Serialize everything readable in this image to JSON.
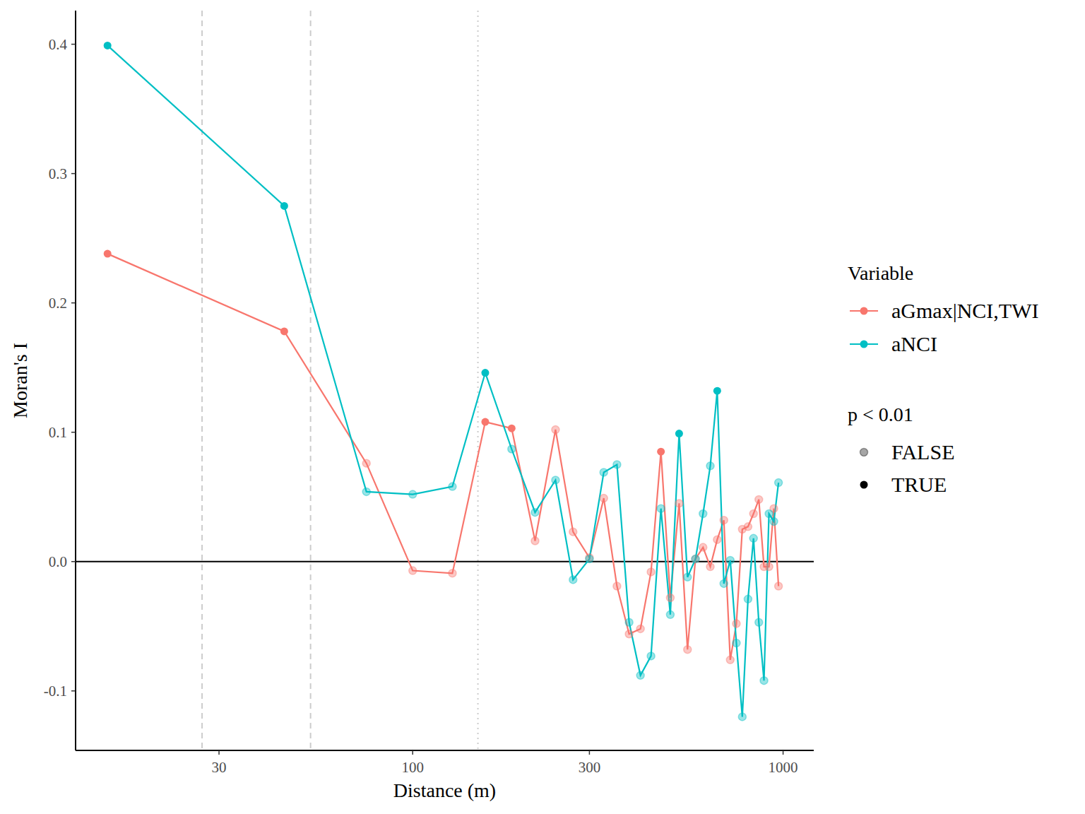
{
  "chart_data": {
    "type": "line",
    "x_label": "Distance (m)",
    "y_label": "Moran's I",
    "log": "x",
    "xlim": [
      12.3,
      1210
    ],
    "ylim": [
      -0.146,
      0.426
    ],
    "xticks": [
      30,
      100,
      300,
      1000
    ],
    "yticks": [
      -0.1,
      {
        "value": 0,
        "label": "0.0"
      },
      0.1,
      0.2,
      0.3,
      0.4
    ],
    "legend": "right",
    "legend_title": "Variable",
    "significance": {
      "title": "p < 0.01",
      "labels": [
        "FALSE",
        "TRUE"
      ]
    },
    "x": [
      15,
      45,
      75,
      100,
      128,
      157,
      185,
      214,
      243,
      271,
      300,
      328,
      356,
      384,
      412,
      440,
      468,
      496,
      524,
      552,
      580,
      608,
      636,
      664,
      692,
      720,
      748,
      776,
      804,
      832,
      860,
      888,
      916,
      944,
      972
    ],
    "series": [
      {
        "name": "aGmax|NCI,TWI",
        "color": "#F8766D",
        "marker": "circle",
        "values": [
          0.238,
          0.178,
          0.076,
          -0.007,
          -0.009,
          0.108,
          0.103,
          0.016,
          0.102,
          0.023,
          0.003,
          0.049,
          -0.019,
          -0.056,
          -0.052,
          -0.008,
          0.085,
          -0.028,
          0.045,
          -0.068,
          0.002,
          0.011,
          -0.004,
          0.017,
          0.032,
          -0.076,
          -0.048,
          0.025,
          0.027,
          0.037,
          0.048,
          -0.004,
          -0.004,
          0.041,
          -0.019
        ],
        "significant": [
          true,
          true,
          false,
          false,
          false,
          true,
          true,
          false,
          false,
          false,
          false,
          false,
          false,
          false,
          false,
          false,
          true,
          false,
          false,
          false,
          false,
          false,
          false,
          false,
          false,
          false,
          false,
          false,
          false,
          false,
          false,
          false,
          false,
          false,
          false
        ]
      },
      {
        "name": "aNCI",
        "color": "#00BFC4",
        "marker": "circle",
        "values": [
          0.399,
          0.275,
          0.054,
          0.052,
          0.058,
          0.146,
          0.087,
          0.038,
          0.063,
          -0.014,
          0.002,
          0.069,
          0.075,
          -0.047,
          -0.088,
          -0.073,
          0.041,
          -0.041,
          0.099,
          -0.012,
          0.002,
          0.037,
          0.074,
          0.132,
          -0.017,
          0.001,
          -0.063,
          -0.12,
          -0.029,
          0.018,
          -0.047,
          -0.092,
          0.037,
          0.031,
          0.061
        ],
        "significant": [
          true,
          true,
          false,
          false,
          false,
          true,
          false,
          false,
          false,
          false,
          false,
          false,
          false,
          false,
          false,
          false,
          false,
          false,
          true,
          false,
          false,
          false,
          false,
          true,
          false,
          false,
          false,
          false,
          false,
          false,
          false,
          false,
          false,
          false,
          false
        ]
      }
    ],
    "vlines": [
      {
        "value": 27,
        "line_style": "dashed"
      },
      {
        "value": 53,
        "line_style": "dashed"
      },
      {
        "value": 150,
        "line_style": "dotted"
      }
    ],
    "hlines": [
      {
        "value": 0,
        "line_style": "solid"
      }
    ]
  }
}
